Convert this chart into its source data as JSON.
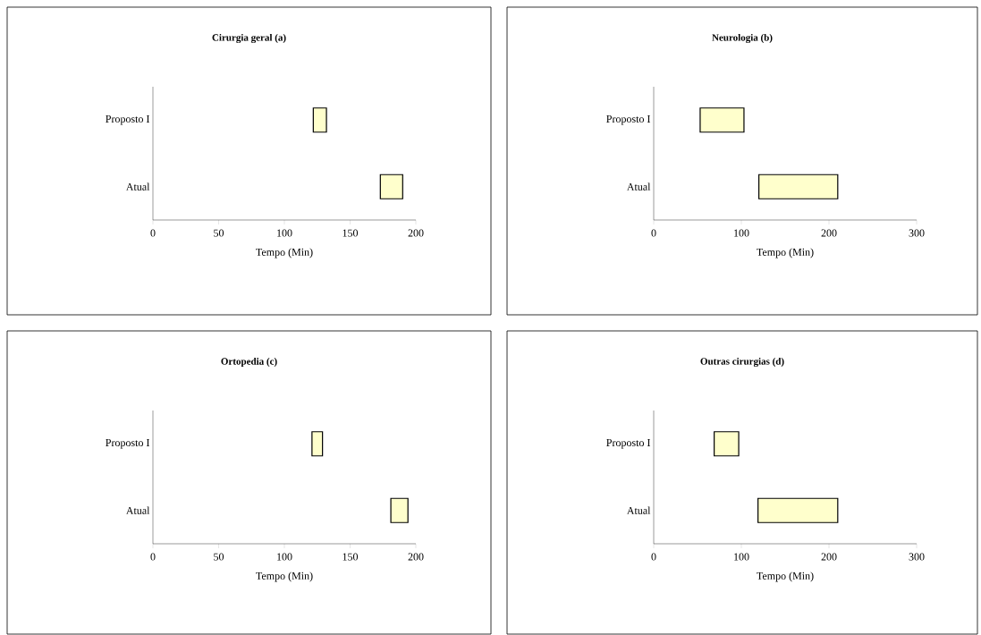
{
  "chart_data": [
    {
      "type": "bar",
      "orientation": "horizontal",
      "title": "Cirurgia geral (a)",
      "xlabel": "Tempo (Min)",
      "categories": [
        "Proposto I",
        "Atual"
      ],
      "base": [
        122,
        173
      ],
      "values": [
        10,
        17
      ],
      "color": "#ffffcc",
      "xlim": [
        0,
        200
      ],
      "xticks": [
        0,
        50,
        100,
        150,
        200
      ]
    },
    {
      "type": "bar",
      "orientation": "horizontal",
      "title": "Neurologia (b)",
      "xlabel": "Tempo (Min)",
      "categories": [
        "Proposto I",
        "Atual"
      ],
      "base": [
        53,
        120
      ],
      "values": [
        50,
        90
      ],
      "color": "#ffffcc",
      "xlim": [
        0,
        300
      ],
      "xticks": [
        0,
        100,
        200,
        300
      ]
    },
    {
      "type": "bar",
      "orientation": "horizontal",
      "title": "Ortopedia (c)",
      "xlabel": "Tempo (Min)",
      "categories": [
        "Proposto I",
        "Atual"
      ],
      "base": [
        121,
        181
      ],
      "values": [
        8,
        13
      ],
      "color": "#ffffcc",
      "xlim": [
        0,
        200
      ],
      "xticks": [
        0,
        50,
        100,
        150,
        200
      ]
    },
    {
      "type": "bar",
      "orientation": "horizontal",
      "title": "Outras cirurgias (d)",
      "xlabel": "Tempo (Min)",
      "categories": [
        "Proposto I",
        "Atual"
      ],
      "base": [
        69,
        119
      ],
      "values": [
        28,
        91
      ],
      "color": "#ffffcc",
      "xlim": [
        0,
        300
      ],
      "xticks": [
        0,
        100,
        200,
        300
      ]
    }
  ]
}
